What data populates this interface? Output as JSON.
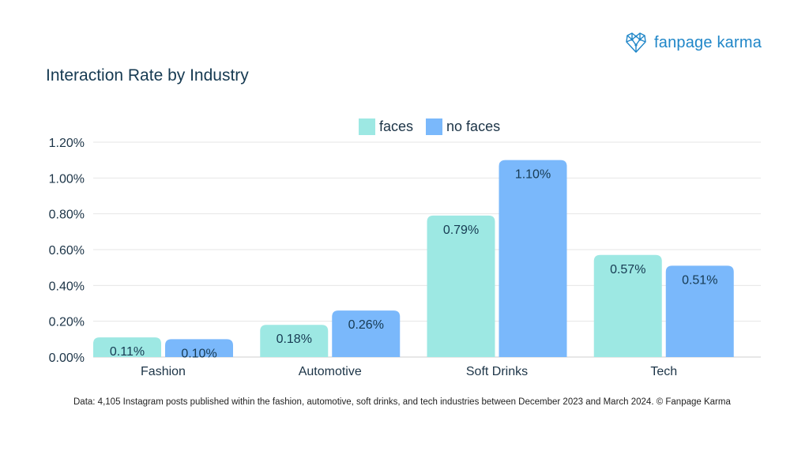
{
  "brand": {
    "name": "fanpage karma",
    "color": "#1f86c8",
    "icon": "heart-network-icon"
  },
  "chart_data": {
    "type": "bar",
    "title": "Interaction Rate by Industry",
    "categories": [
      "Fashion",
      "Automotive",
      "Soft Drinks",
      "Tech"
    ],
    "series": [
      {
        "name": "faces",
        "color": "#9de8e3",
        "values": [
          0.11,
          0.18,
          0.79,
          0.57
        ],
        "labels": [
          "0.11%",
          "0.18%",
          "0.79%",
          "0.57%"
        ]
      },
      {
        "name": "no faces",
        "color": "#7ab8fb",
        "values": [
          0.1,
          0.26,
          1.1,
          0.51
        ],
        "labels": [
          "0.10%",
          "0.26%",
          "1.10%",
          "0.51%"
        ]
      }
    ],
    "ylim": [
      0,
      1.2
    ],
    "yticks": [
      {
        "value": 0,
        "label": "0.00%"
      },
      {
        "value": 0.2,
        "label": "0.20%"
      },
      {
        "value": 0.4,
        "label": "0.40%"
      },
      {
        "value": 0.6,
        "label": "0.60%"
      },
      {
        "value": 0.8,
        "label": "0.80%"
      },
      {
        "value": 1.0,
        "label": "1.00%"
      },
      {
        "value": 1.2,
        "label": "1.20%"
      }
    ],
    "grid": true,
    "legend_position": "top-center",
    "xlabel": "",
    "ylabel": ""
  },
  "footnote": "Data: 4,105 Instagram posts published within the fashion, automotive, soft drinks, and tech industries between December 2023 and March 2024. © Fanpage Karma"
}
